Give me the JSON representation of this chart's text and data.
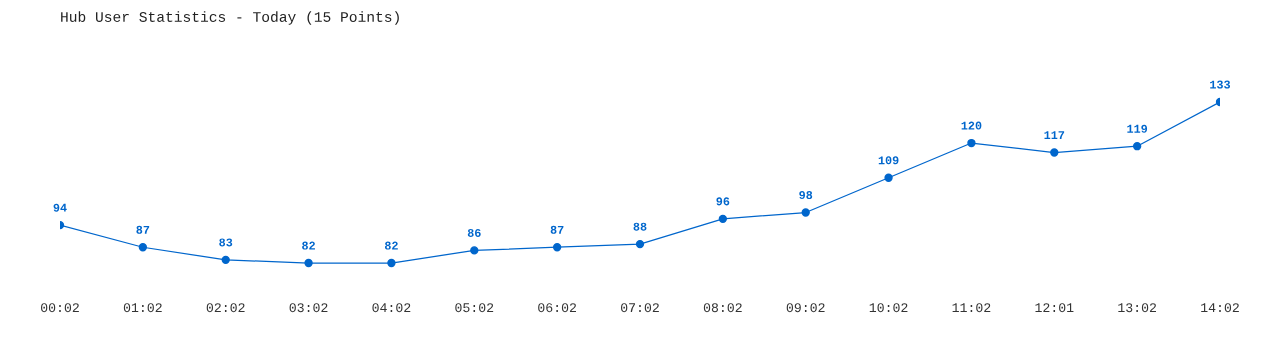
{
  "chart_data": {
    "type": "line",
    "title": "Hub User Statistics - Today (15 Points)",
    "categories": [
      "00:02",
      "01:02",
      "02:02",
      "03:02",
      "04:02",
      "05:02",
      "06:02",
      "07:02",
      "08:02",
      "09:02",
      "10:02",
      "11:02",
      "12:01",
      "13:02",
      "14:02"
    ],
    "series": [
      {
        "color": "#0066cc",
        "values": [
          94,
          87,
          83,
          82,
          82,
          86,
          87,
          88,
          96,
          98,
          109,
          120,
          117,
          119,
          133
        ]
      }
    ],
    "data_labels": true,
    "marker": "circle",
    "line_style": "solid",
    "grid": false,
    "legend": false,
    "tick_labels": "x"
  }
}
